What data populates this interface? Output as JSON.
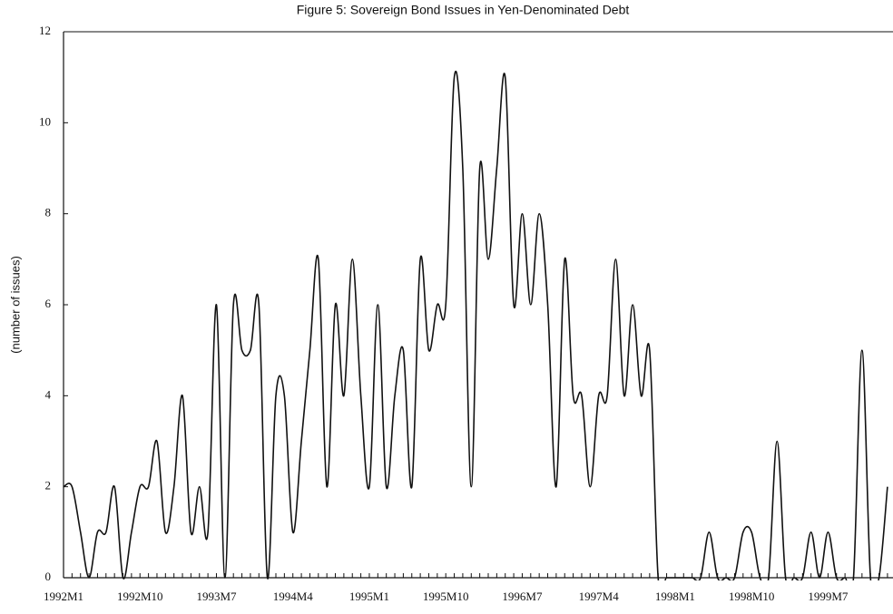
{
  "chart_data": {
    "type": "line",
    "title": "Figure 5: Sovereign Bond Issues in Yen-Denominated Debt",
    "y_label": "(number of issues)",
    "categories": [
      "1992M1",
      null,
      null,
      null,
      null,
      null,
      null,
      null,
      null,
      "1992M10",
      null,
      null,
      null,
      null,
      null,
      null,
      null,
      null,
      "1993M7",
      null,
      null,
      null,
      null,
      null,
      null,
      null,
      null,
      "1994M4",
      null,
      null,
      null,
      null,
      null,
      null,
      null,
      null,
      "1995M1",
      null,
      null,
      null,
      null,
      null,
      null,
      null,
      null,
      "1995M10",
      null,
      null,
      null,
      null,
      null,
      null,
      null,
      null,
      "1996M7",
      null,
      null,
      null,
      null,
      null,
      null,
      null,
      null,
      "1997M4",
      null,
      null,
      null,
      null,
      null,
      null,
      null,
      null,
      "1998M1",
      null,
      null,
      null,
      null,
      null,
      null,
      null,
      null,
      "1998M10",
      null,
      null,
      null,
      null,
      null,
      null,
      null,
      null,
      "1999M7",
      null,
      null,
      null,
      null,
      null,
      null,
      null
    ],
    "series": [
      {
        "name": "Sovereign bond issues",
        "color": "#111111",
        "values": [
          2,
          2,
          1,
          0,
          1,
          1,
          2,
          0,
          1,
          2,
          2,
          3,
          1,
          2,
          4,
          1,
          2,
          1,
          6,
          0,
          6,
          5,
          5,
          6,
          0,
          4,
          4,
          1,
          3,
          5,
          7,
          2,
          6,
          4,
          7,
          4,
          2,
          6,
          2,
          4,
          5,
          2,
          7,
          5,
          6,
          6,
          11,
          9,
          2,
          9,
          7,
          9,
          11,
          6,
          8,
          6,
          8,
          6,
          2,
          7,
          4,
          4,
          2,
          4,
          4,
          7,
          4,
          6,
          4,
          5,
          0,
          0,
          0,
          0,
          0,
          0,
          1,
          0,
          0,
          0,
          1,
          1,
          0,
          0,
          3,
          0,
          0,
          0,
          1,
          0,
          1,
          0,
          0,
          0,
          5,
          0,
          0,
          2
        ]
      }
    ],
    "ylim": [
      0,
      12
    ],
    "yticks": [
      0,
      2,
      4,
      6,
      8,
      10,
      12
    ],
    "grid": false
  }
}
